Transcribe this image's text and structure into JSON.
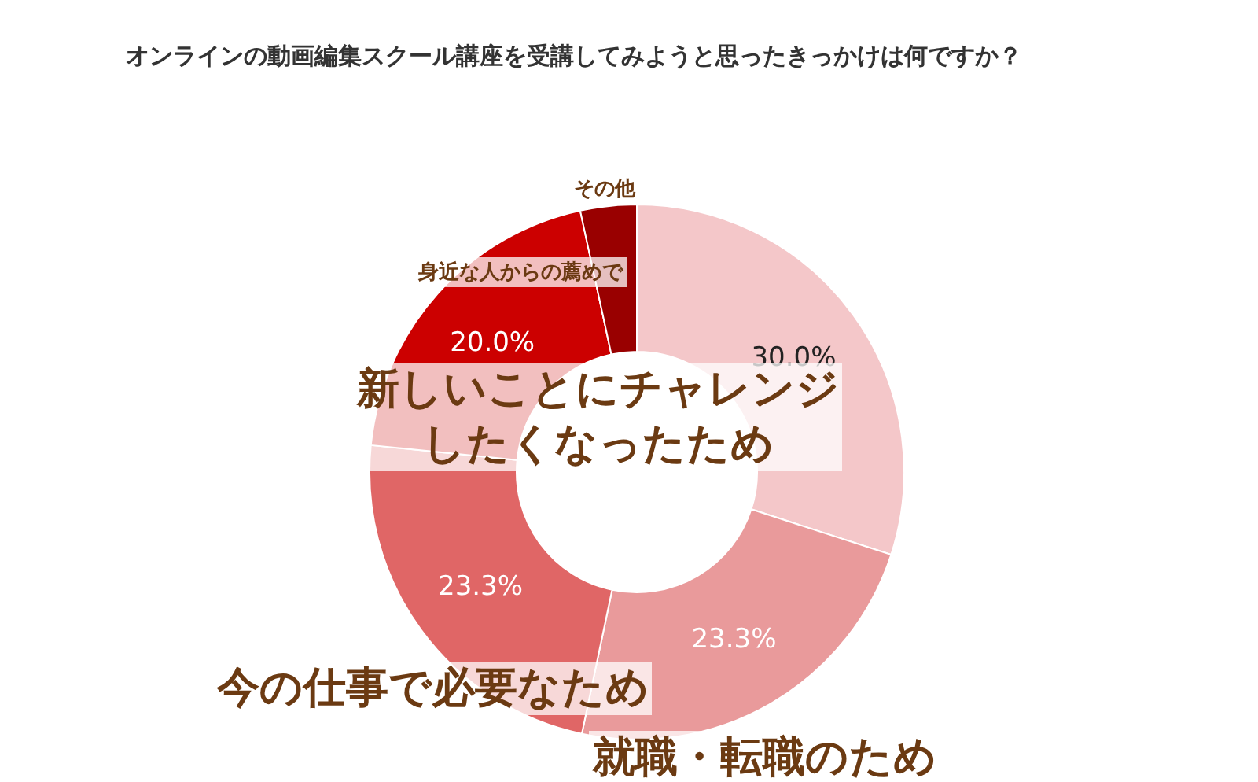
{
  "chart_data": {
    "type": "donut",
    "title": "オンラインの動画編集スクール講座を受講してみようと思ったきっかけは何ですか？",
    "categories": [
      "新しいことにチャレンジしたくなったため",
      "就職・転職のため",
      "今の仕事で必要なため",
      "身近な人からの薦めで",
      "その他"
    ],
    "values": [
      30.0,
      23.3,
      23.3,
      20.0,
      3.4
    ],
    "colors": [
      "#f4c7c9",
      "#e99a9b",
      "#e06666",
      "#cc0000",
      "#990000"
    ],
    "value_labels": [
      "30.0%",
      "23.3%",
      "23.3%",
      "20.0%",
      null
    ]
  }
}
